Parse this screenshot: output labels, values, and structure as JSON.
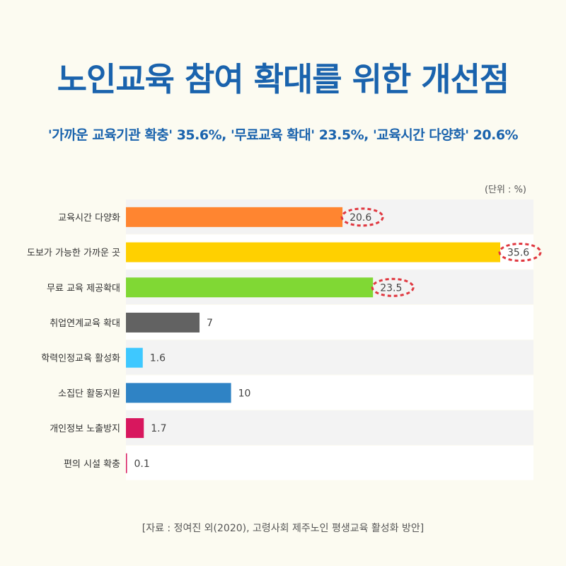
{
  "title": "노인교육 참여 확대를 위한 개선점",
  "subtitle": "'가까운 교육기관 확충' 35.6%, '무료교육 확대' 23.5%, '교육시간 다양화' 20.6%",
  "source": "[자료 : 정여진 외(2020), 고령사회 제주노인 평생교육 활성화 방안]",
  "chart_data": {
    "type": "bar",
    "orientation": "horizontal",
    "unit_label": "(단위 : %)",
    "categories": [
      "교육시간 다양화",
      "도보가 가능한 가까운 곳",
      "무료 교육 제공확대",
      "취업연계교육 확대",
      "학력인정교육 활성화",
      "소집단 활동지원",
      "개인정보 노출방지",
      "편의 시설 확충"
    ],
    "values": [
      20.6,
      35.6,
      23.5,
      7,
      1.6,
      10,
      1.7,
      0.1
    ],
    "value_labels": [
      "20.6",
      "35.6",
      "23.5",
      "7",
      "1.6",
      "10",
      "1.7",
      "0.1"
    ],
    "colors": [
      "#ff8530",
      "#ffd000",
      "#80d834",
      "#626262",
      "#3ec8ff",
      "#2f83c5",
      "#d8175e",
      "#d8175e"
    ],
    "highlighted": [
      true,
      true,
      true,
      false,
      false,
      false,
      false,
      false
    ],
    "highlight_color": "#e03840",
    "xlim": [
      0,
      35.6
    ]
  }
}
